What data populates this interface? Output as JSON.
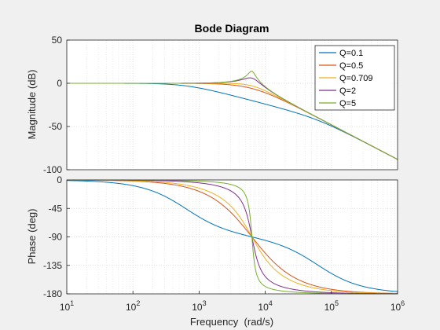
{
  "chart_data": {
    "type": "line",
    "title": "Bode Diagram",
    "xlabel": "Frequency  (rad/s)",
    "x_scale": "log",
    "xlim": [
      10,
      1000000
    ],
    "x_ticks": [
      "10^1",
      "10^2",
      "10^3",
      "10^4",
      "10^5",
      "10^6"
    ],
    "grid": true,
    "legend_position": "top-right",
    "panels": [
      {
        "id": "magnitude",
        "ylabel": "Magnitude (dB)",
        "ylim": [
          -100,
          50
        ],
        "y_ticks": [
          "50",
          "0",
          "-50",
          "-100"
        ]
      },
      {
        "id": "phase",
        "ylabel": "Phase (deg)",
        "ylim": [
          -180,
          0
        ],
        "y_ticks": [
          "0",
          "-45",
          "-90",
          "-135",
          "-180"
        ]
      }
    ],
    "natural_frequency": 6283,
    "series": [
      {
        "name": "Q=0.1",
        "Q": 0.1,
        "color": "#0072BD"
      },
      {
        "name": "Q=0.5",
        "Q": 0.5,
        "color": "#D95319"
      },
      {
        "name": "Q=0.709",
        "Q": 0.709,
        "color": "#EDB120"
      },
      {
        "name": "Q=2",
        "Q": 2,
        "color": "#7E2F8E"
      },
      {
        "name": "Q=5",
        "Q": 5,
        "color": "#77AC30"
      }
    ]
  }
}
